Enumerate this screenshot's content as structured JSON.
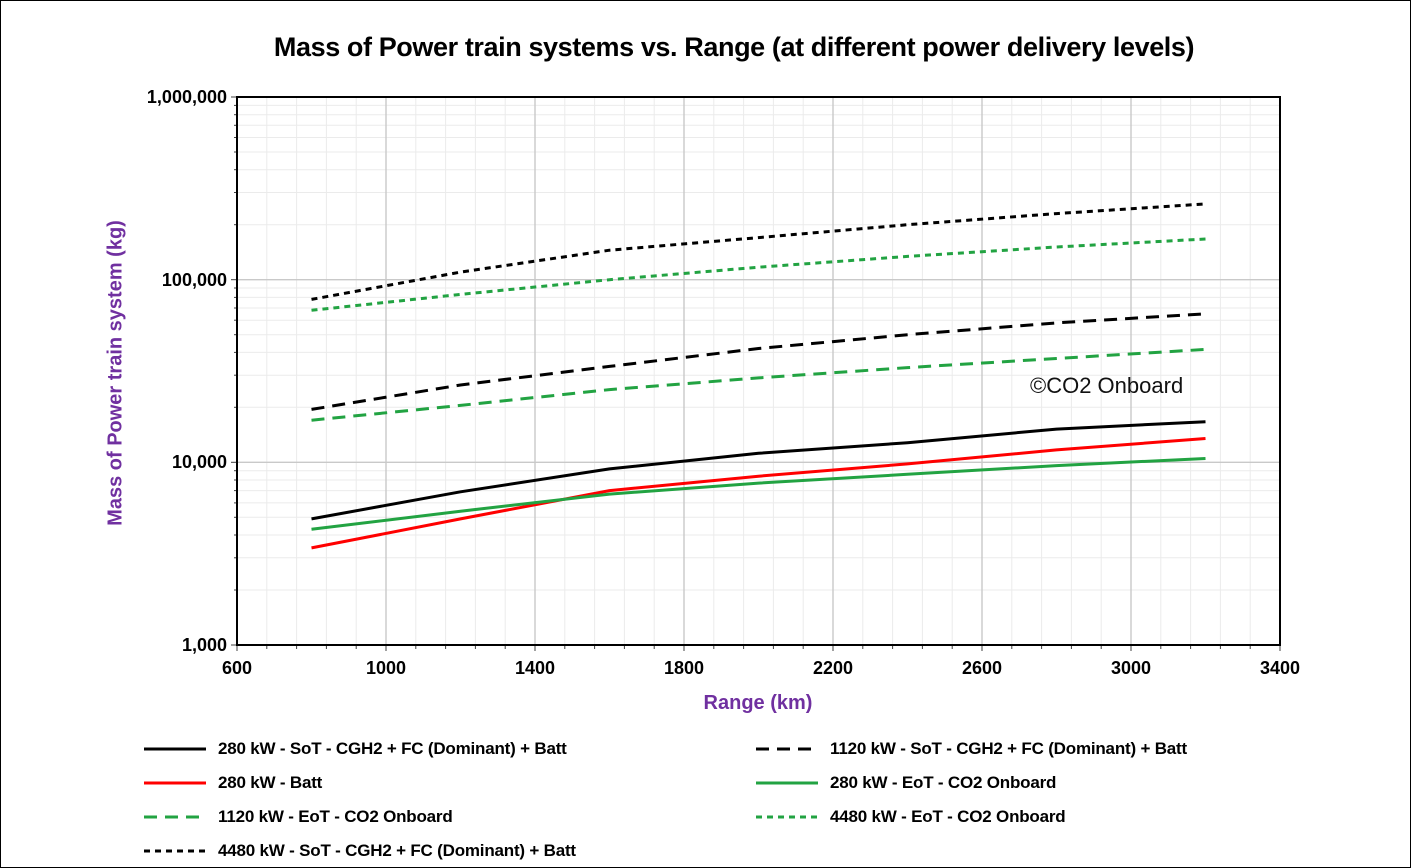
{
  "chart_data": {
    "type": "line",
    "title": "Mass of Power train systems vs. Range (at different power delivery levels)",
    "xlabel": "Range (km)",
    "ylabel": "Mass of Power train system (kg)",
    "watermark": "©CO2 Onboard",
    "axis_title_color": "#7030A0",
    "grid": "major-and-minor",
    "legend_position": "bottom-two-columns",
    "x_axis": {
      "scale": "linear",
      "min": 600,
      "max": 3400,
      "major_tick_values": [
        600,
        1000,
        1400,
        1800,
        2200,
        2600,
        3000,
        3400
      ],
      "major_tick_labels": [
        "600",
        "1000",
        "1400",
        "1800",
        "2200",
        "2600",
        "3000",
        "3400"
      ],
      "minor_step": 80
    },
    "y_axis": {
      "scale": "log",
      "min": 1000,
      "max": 1000000,
      "ticks": [
        {
          "value": 1000,
          "label": "1,000"
        },
        {
          "value": 10000,
          "label": "10,000"
        },
        {
          "value": 100000,
          "label": "100,000"
        },
        {
          "value": 1000000,
          "label": "1,000,000"
        }
      ]
    },
    "x": [
      800,
      1200,
      1600,
      2000,
      2400,
      2800,
      3200
    ],
    "series": [
      {
        "name": "280 kW - SoT - CGH2 + FC (Dominant) + Batt",
        "color": "#000000",
        "dash": "solid",
        "values": [
          4900,
          6900,
          9200,
          11200,
          12800,
          15200,
          16700
        ]
      },
      {
        "name": "1120 kW - SoT - CGH2 + FC (Dominant) + Batt",
        "color": "#000000",
        "dash": "long-dash",
        "values": [
          19500,
          26500,
          33500,
          42000,
          50000,
          58000,
          65000
        ]
      },
      {
        "name": "280 kW - Batt",
        "color": "#FF0000",
        "dash": "solid",
        "values": [
          3400,
          4900,
          7000,
          8400,
          9800,
          11700,
          13500
        ]
      },
      {
        "name": "280 kW - EoT - CO2 Onboard",
        "color": "#22A342",
        "dash": "solid",
        "values": [
          4300,
          5400,
          6700,
          7700,
          8600,
          9600,
          10500
        ]
      },
      {
        "name": "1120 kW - EoT - CO2 Onboard",
        "color": "#22A342",
        "dash": "long-dash",
        "values": [
          17000,
          20500,
          25000,
          29000,
          33000,
          37000,
          41500
        ]
      },
      {
        "name": "4480 kW - EoT - CO2 Onboard",
        "color": "#22A342",
        "dash": "short-dash",
        "values": [
          68000,
          83000,
          100000,
          117000,
          134000,
          151000,
          167000
        ]
      },
      {
        "name": "4480 kW - SoT - CGH2 + FC (Dominant) + Batt",
        "color": "#000000",
        "dash": "short-dash",
        "values": [
          78000,
          110000,
          145000,
          170000,
          200000,
          230000,
          260000
        ]
      }
    ]
  }
}
